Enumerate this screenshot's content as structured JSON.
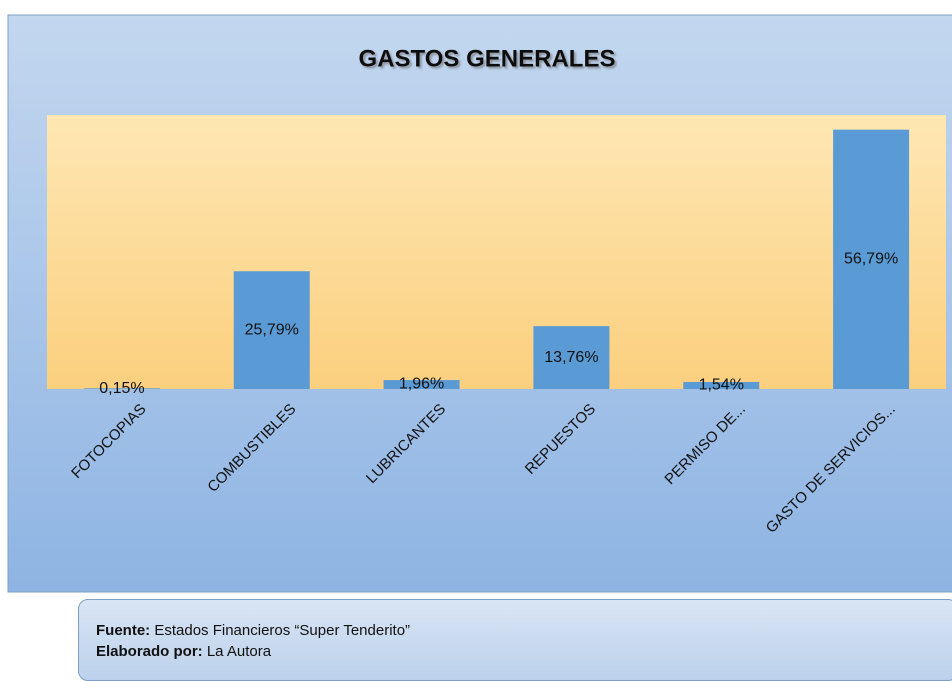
{
  "chart_data": {
    "type": "bar",
    "title": "GASTOS GENERALES",
    "categories": [
      "FOTOCOPIAS",
      "COMBUSTIBLES",
      "LUBRICANTES",
      "REPUESTOS",
      "PERMISO DE...",
      "GASTO DE SERVICIOS..."
    ],
    "values": [
      0.15,
      25.79,
      1.96,
      13.76,
      1.54,
      56.79
    ],
    "value_labels": [
      "0,15%",
      "25,79%",
      "1,96%",
      "13,76%",
      "1,54%",
      "56,79%"
    ],
    "color": "#5b9bd5",
    "ylim": [
      0,
      60
    ]
  },
  "footer": {
    "source_label": "Fuente:",
    "source": "Estados Financieros “Super Tenderito”",
    "author_label": "Elaborado por:",
    "author": "La Autora"
  }
}
